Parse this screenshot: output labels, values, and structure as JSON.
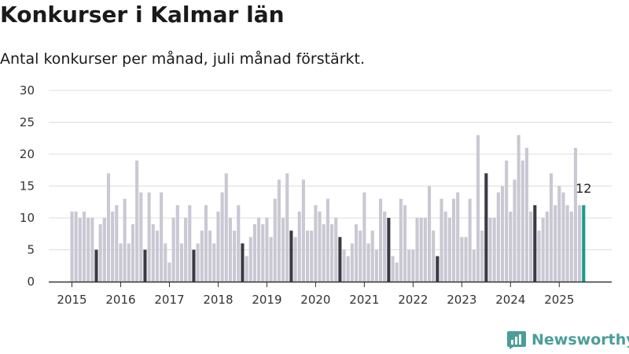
{
  "title": "Konkurser i Kalmar län",
  "subtitle": "Antal konkurser per månad, juli månad förstärkt.",
  "brand": "Newsworthy",
  "colors": {
    "bar": "#c9c8d3",
    "highlight_july": "#3a3a46",
    "latest": "#1a9a8e",
    "grid": "#dddddd",
    "axis": "#333333",
    "brand": "#4a9e99"
  },
  "chart_data": {
    "type": "bar",
    "title": "Konkurser i Kalmar län",
    "subtitle": "Antal konkurser per månad, juli månad förstärkt.",
    "ylim": [
      0,
      30
    ],
    "yticks": [
      0,
      5,
      10,
      15,
      20,
      25,
      30
    ],
    "year_labels": [
      "2015",
      "2016",
      "2017",
      "2018",
      "2019",
      "2020",
      "2021",
      "2022",
      "2023",
      "2024",
      "2025"
    ],
    "start": "2015-01",
    "values": [
      11,
      11,
      10,
      11,
      10,
      10,
      5,
      9,
      10,
      17,
      11,
      12,
      6,
      13,
      6,
      9,
      19,
      14,
      5,
      14,
      9,
      8,
      14,
      6,
      3,
      10,
      12,
      6,
      10,
      12,
      5,
      6,
      8,
      12,
      8,
      6,
      11,
      14,
      17,
      10,
      8,
      12,
      6,
      4,
      7,
      9,
      10,
      9,
      10,
      7,
      13,
      16,
      10,
      17,
      8,
      7,
      11,
      16,
      8,
      8,
      12,
      11,
      9,
      13,
      9,
      10,
      7,
      5,
      4,
      6,
      9,
      8,
      14,
      6,
      8,
      5,
      13,
      11,
      10,
      4,
      3,
      13,
      12,
      5,
      5,
      10,
      10,
      10,
      15,
      8,
      4,
      13,
      11,
      10,
      13,
      14,
      7,
      7,
      13,
      5,
      23,
      8,
      17,
      10,
      10,
      14,
      15,
      19,
      11,
      16,
      23,
      19,
      21,
      11,
      12,
      8,
      10,
      11,
      17,
      12,
      15,
      14,
      12,
      11,
      21,
      12,
      12
    ],
    "highlight_month": 7,
    "latest_label": "12"
  }
}
